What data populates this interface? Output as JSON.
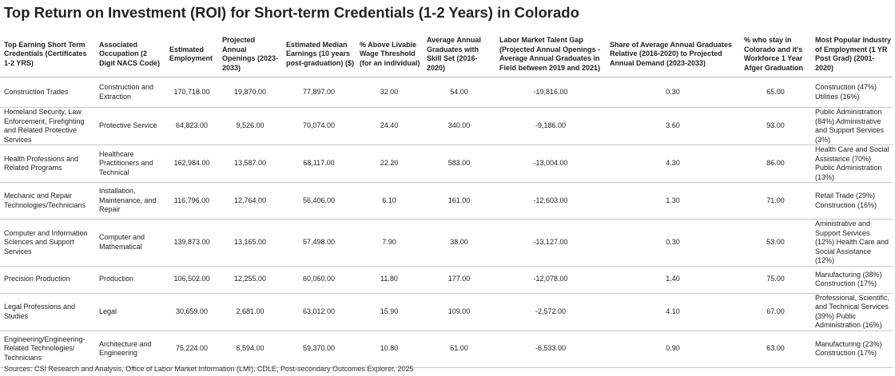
{
  "title": "Top Return on Investment (ROI) for Short-term Credentials (1-2 Years) in Colorado",
  "columns": [
    "Top Earning Short Term Credentials (Certificates 1-2 YRS)",
    "Associated Occupation (2 Digit NACS Code)",
    "Estimated Employment",
    "Projected Annual Openings (2023-2033)",
    "Estimated Median Earnings (10 years post-graduation) ($)",
    "% Above Livable Wage Threshold (for an individual)",
    "Average Annual Graduates with Skill Set (2016-2020)",
    "Labor Market Talent Gap (Projected Annual Openings - Average Annual Graduates in Field between 2019 and 2021)",
    "Share of Average Annual Graduates Relative (2016-2020) to Projected Annual Demand (2023-2033)",
    "% who stay in Colorado and it's Workforce 1 Year Afger Graduation",
    "Most Popular Industry of Employment (1 YR Post Grad) (2001-2020)"
  ],
  "rows": [
    [
      "Construction Trades",
      "Construction and Extraction",
      "170,718.00",
      "19,870.00",
      "77,897.00",
      "32.00",
      "54.00",
      "-19,816.00",
      "0.30",
      "65.00",
      "Construction (47%) Utilities (16%)"
    ],
    [
      "Homeland Security, Law Enforcement, Firefighting and Related Protective Services",
      "Protective Service",
      "64,823.00",
      "9,526.00",
      "70,074.00",
      "24.40",
      "340.00",
      "-9,186.00",
      "3.60",
      "93.00",
      "Public Administration (84%) Administrative and Support Services (3%)"
    ],
    [
      "Health Professions and Related Programs",
      "Healthcare Practitioners and Technical",
      "162,984.00",
      "13,587.00",
      "68,117.00",
      "22.20",
      "583.00",
      "-13,004.00",
      "4.30",
      "86.00",
      "Health Care and Social Assistance (70%) Public Administration (13%)"
    ],
    [
      "Mechanic and Repair Technologies/Technicians",
      "Installation, Maintenance, and Repair",
      "116,796.00",
      "12,764.00",
      "56,406.00",
      "6.10",
      "161.00",
      "-12,603.00",
      "1.30",
      "71.00",
      "Retail Trade (29%) Construction (16%)"
    ],
    [
      "Computer and Information Sciences and Support Services",
      "Computer and Mathematical",
      "139,873.00",
      "13,165.00",
      "57,498.00",
      "7.90",
      "38.00",
      "-13,127.00",
      "0.30",
      "53.00",
      "Aministrative and Support Services (12%) Health Care and Social Assistance (12%)"
    ],
    [
      "Precision Production",
      "Production",
      "106,502.00",
      "12,255.00",
      "60,060.00",
      "11.80",
      "177.00",
      "-12,078.00",
      "1.40",
      "75.00",
      "Manufacturing (38%) Construction (17%)"
    ],
    [
      "Legal Professions and Studies",
      "Legal",
      "30,659.00",
      "2,681.00",
      "63,012.00",
      "15.90",
      "109.00",
      "-2,572.00",
      "4.10",
      "67.00",
      "Professional, Scientific, and Technical Services (39%) Public Administration (16%)"
    ],
    [
      "Engineering/Engineering-Related Technologies/ Technicians",
      "Architecture and Engineering",
      "75,224.00",
      "6,594.00",
      "59,370.00",
      "10.80",
      "61.00",
      "-6,533.00",
      "0.90",
      "63.00",
      "Manufacturing (23%) Construction (17%)"
    ]
  ],
  "sources": "Sources: CSI Research and Analysis, Office of Labor Market Information (LMI), CDLE, Post-secondary Outcomes Explorer, 2025"
}
